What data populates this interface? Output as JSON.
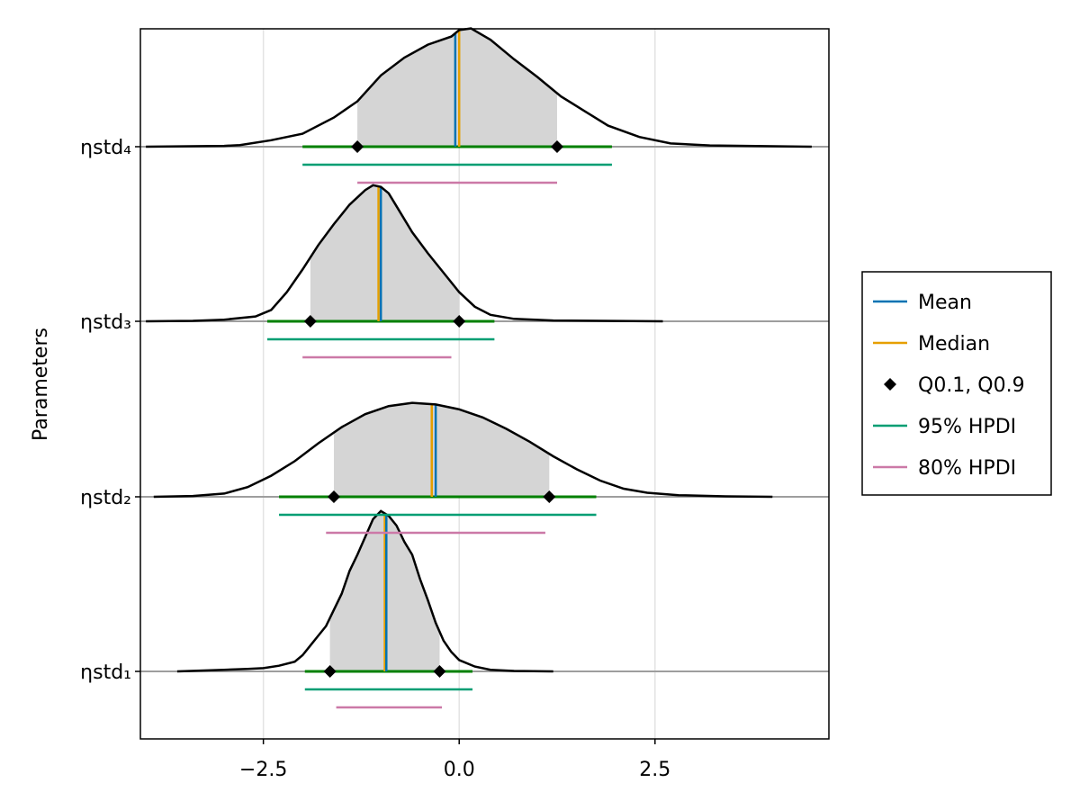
{
  "chart_data": {
    "type": "density-ridgeline",
    "ylabel": "Parameters",
    "xlabel": "",
    "xlim": [
      -4.07,
      4.72
    ],
    "xticks": [
      -2.5,
      0.0,
      2.5
    ],
    "xtick_labels": [
      "−2.5",
      "0.0",
      "2.5"
    ],
    "grid": "vertical",
    "legend_position": "right",
    "legend": [
      {
        "label": "Mean",
        "kind": "line",
        "color": "#0072B2"
      },
      {
        "label": "Median",
        "kind": "line",
        "color": "#E69F00"
      },
      {
        "label": "Q0.1, Q0.9",
        "kind": "marker",
        "color": "#000000"
      },
      {
        "label": "95% HPDI",
        "kind": "line",
        "color": "#009E73"
      },
      {
        "label": "80% HPDI",
        "kind": "line",
        "color": "#CC79A7"
      }
    ],
    "colors": {
      "mean": "#0072B2",
      "median": "#E69F00",
      "quantile_marker": "#000000",
      "hpd95": "#009E73",
      "hpd80": "#CC79A7",
      "fill": "#D5D5D5",
      "density_line": "#000000",
      "baseline": "#9E9E9E",
      "quantile_line": "#008000"
    },
    "parameters": [
      {
        "name": "ηstd₁",
        "mean": -0.93,
        "median": -0.95,
        "q10": -1.65,
        "q90": -0.25,
        "hpd95": [
          -1.97,
          0.17
        ],
        "hpd80": [
          -1.57,
          -0.22
        ],
        "support": [
          -3.6,
          1.2
        ],
        "density": [
          [
            -3.6,
            0.0
          ],
          [
            -3.0,
            0.01
          ],
          [
            -2.7,
            0.015
          ],
          [
            -2.5,
            0.02
          ],
          [
            -2.3,
            0.035
          ],
          [
            -2.1,
            0.06
          ],
          [
            -2.0,
            0.1
          ],
          [
            -1.9,
            0.16
          ],
          [
            -1.8,
            0.22
          ],
          [
            -1.7,
            0.28
          ],
          [
            -1.6,
            0.38
          ],
          [
            -1.5,
            0.48
          ],
          [
            -1.4,
            0.62
          ],
          [
            -1.3,
            0.72
          ],
          [
            -1.2,
            0.83
          ],
          [
            -1.1,
            0.94
          ],
          [
            -1.0,
            0.99
          ],
          [
            -0.9,
            0.96
          ],
          [
            -0.8,
            0.9
          ],
          [
            -0.7,
            0.8
          ],
          [
            -0.6,
            0.72
          ],
          [
            -0.5,
            0.57
          ],
          [
            -0.4,
            0.44
          ],
          [
            -0.3,
            0.3
          ],
          [
            -0.2,
            0.19
          ],
          [
            -0.1,
            0.12
          ],
          [
            0.0,
            0.07
          ],
          [
            0.2,
            0.03
          ],
          [
            0.4,
            0.01
          ],
          [
            0.7,
            0.003
          ],
          [
            1.2,
            0.0
          ]
        ]
      },
      {
        "name": "ηstd₂",
        "mean": -0.3,
        "median": -0.35,
        "q10": -1.6,
        "q90": 1.15,
        "hpd95": [
          -2.3,
          1.75
        ],
        "hpd80": [
          -1.7,
          1.1
        ],
        "support": [
          -3.9,
          4.0
        ],
        "density": [
          [
            -3.9,
            0.0
          ],
          [
            -3.4,
            0.005
          ],
          [
            -3.0,
            0.02
          ],
          [
            -2.7,
            0.06
          ],
          [
            -2.4,
            0.13
          ],
          [
            -2.1,
            0.22
          ],
          [
            -1.8,
            0.33
          ],
          [
            -1.5,
            0.43
          ],
          [
            -1.2,
            0.51
          ],
          [
            -0.9,
            0.56
          ],
          [
            -0.6,
            0.58
          ],
          [
            -0.3,
            0.57
          ],
          [
            0.0,
            0.54
          ],
          [
            0.3,
            0.49
          ],
          [
            0.6,
            0.42
          ],
          [
            0.9,
            0.34
          ],
          [
            1.2,
            0.25
          ],
          [
            1.5,
            0.17
          ],
          [
            1.8,
            0.1
          ],
          [
            2.1,
            0.05
          ],
          [
            2.4,
            0.025
          ],
          [
            2.8,
            0.01
          ],
          [
            3.4,
            0.003
          ],
          [
            4.0,
            0.0
          ]
        ]
      },
      {
        "name": "ηstd₃",
        "mean": -1.0,
        "median": -1.03,
        "q10": -1.9,
        "q90": 0.0,
        "hpd95": [
          -2.45,
          0.45
        ],
        "hpd80": [
          -2.0,
          -0.1
        ],
        "support": [
          -4.0,
          2.6
        ],
        "density": [
          [
            -4.0,
            0.0
          ],
          [
            -3.4,
            0.003
          ],
          [
            -3.0,
            0.01
          ],
          [
            -2.6,
            0.03
          ],
          [
            -2.4,
            0.07
          ],
          [
            -2.2,
            0.18
          ],
          [
            -2.0,
            0.32
          ],
          [
            -1.8,
            0.47
          ],
          [
            -1.6,
            0.6
          ],
          [
            -1.4,
            0.72
          ],
          [
            -1.2,
            0.81
          ],
          [
            -1.1,
            0.84
          ],
          [
            -1.0,
            0.83
          ],
          [
            -0.9,
            0.79
          ],
          [
            -0.8,
            0.71
          ],
          [
            -0.6,
            0.55
          ],
          [
            -0.4,
            0.42
          ],
          [
            -0.2,
            0.3
          ],
          [
            0.0,
            0.18
          ],
          [
            0.2,
            0.09
          ],
          [
            0.4,
            0.04
          ],
          [
            0.7,
            0.015
          ],
          [
            1.2,
            0.005
          ],
          [
            2.6,
            0.0
          ]
        ]
      },
      {
        "name": "ηstd₄",
        "mean": -0.05,
        "median": 0.0,
        "q10": -1.3,
        "q90": 1.25,
        "hpd95": [
          -2.0,
          1.95
        ],
        "hpd80": [
          -1.3,
          1.25
        ],
        "support": [
          -4.0,
          4.5
        ],
        "density": [
          [
            -4.0,
            0.0
          ],
          [
            -3.0,
            0.005
          ],
          [
            -2.8,
            0.01
          ],
          [
            -2.4,
            0.04
          ],
          [
            -2.0,
            0.08
          ],
          [
            -1.6,
            0.18
          ],
          [
            -1.3,
            0.28
          ],
          [
            -1.0,
            0.44
          ],
          [
            -0.7,
            0.55
          ],
          [
            -0.4,
            0.63
          ],
          [
            -0.1,
            0.68
          ],
          [
            0.0,
            0.72
          ],
          [
            0.15,
            0.73
          ],
          [
            0.4,
            0.66
          ],
          [
            0.7,
            0.54
          ],
          [
            1.0,
            0.43
          ],
          [
            1.3,
            0.31
          ],
          [
            1.6,
            0.22
          ],
          [
            1.9,
            0.13
          ],
          [
            2.3,
            0.06
          ],
          [
            2.7,
            0.02
          ],
          [
            3.2,
            0.008
          ],
          [
            4.5,
            0.0
          ]
        ]
      }
    ]
  }
}
